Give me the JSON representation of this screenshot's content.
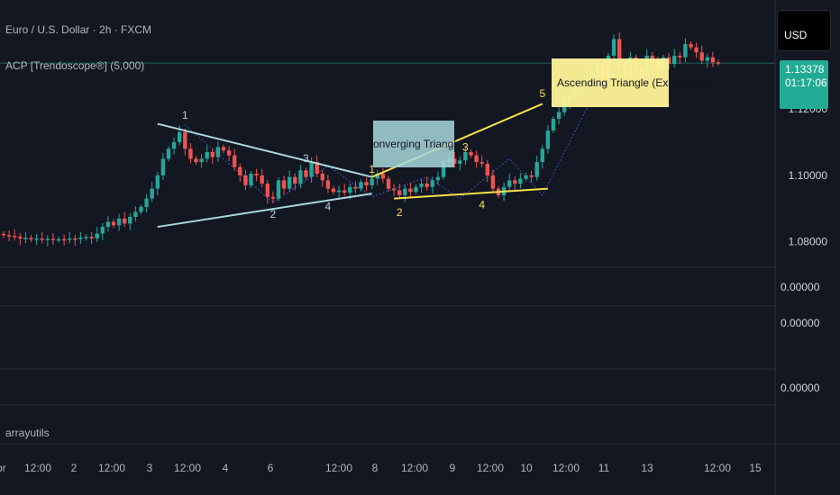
{
  "header": {
    "symbol_title": "Euro / U.S. Dollar · 2h · FXCM",
    "indicator_label": "ACP [Trendoscope®] (5,000)",
    "currency": "USD"
  },
  "price_badge": {
    "price": "1.13378",
    "countdown": "01:17:06"
  },
  "patterns": {
    "converging_label": "Converging Triangle",
    "ascending_label": "Ascending Triangle (Expanding)",
    "pivot_labels": [
      "1",
      "2",
      "3",
      "4",
      "1",
      "2",
      "3",
      "4",
      "5"
    ]
  },
  "panes": {
    "values": [
      "0.00000",
      "0.00000",
      "0.00000"
    ],
    "extra_label": "arrayutils"
  },
  "colors": {
    "background": "#131722",
    "up": "#26a69a",
    "down": "#ef5350",
    "converging": "#a9d8dc",
    "ascending": "#f7e04a",
    "zigzag": "#3f51b5"
  },
  "chart_data": {
    "type": "candlestick",
    "symbol": "EURUSD",
    "timeframe": "2h",
    "y_ticks": [
      "1.12000",
      "1.10000",
      "1.08000"
    ],
    "ylim": [
      1.071,
      1.14
    ],
    "x_ticks": [
      "Apr",
      "12:00",
      "2",
      "12:00",
      "3",
      "12:00",
      "4",
      "6",
      "12:00",
      "8",
      "12:00",
      "9",
      "12:00",
      "10",
      "12:00",
      "11",
      "13",
      "12:00",
      "15"
    ],
    "last_price": 1.13378,
    "closes": [
      1.082,
      1.0818,
      1.0815,
      1.081,
      1.0812,
      1.0808,
      1.081,
      1.0806,
      1.0809,
      1.0805,
      1.0808,
      1.0806,
      1.081,
      1.0808,
      1.0812,
      1.0815,
      1.081,
      1.0825,
      1.0845,
      1.086,
      1.085,
      1.087,
      1.0855,
      1.0875,
      1.089,
      1.0905,
      1.093,
      1.096,
      1.1,
      1.105,
      1.108,
      1.11,
      1.113,
      1.108,
      1.105,
      1.104,
      1.105,
      1.107,
      1.1055,
      1.1085,
      1.1075,
      1.106,
      1.1025,
      1.1,
      1.097,
      1.1005,
      1.1,
      1.0975,
      1.0935,
      1.093,
      1.0985,
      1.096,
      1.0995,
      1.0975,
      1.1015,
      1.0995,
      1.104,
      1.1005,
      1.0985,
      1.096,
      1.095,
      1.0955,
      1.0948,
      1.0965,
      1.096,
      1.098,
      1.097,
      1.099,
      1.1005,
      1.099,
      1.096,
      1.0955,
      1.094,
      1.096,
      1.095,
      1.0965,
      1.0975,
      1.0965,
      1.0985,
      1.0995,
      1.104,
      1.105,
      1.1035,
      1.1045,
      1.107,
      1.106,
      1.104,
      1.1035,
      1.1,
      1.096,
      1.094,
      1.0965,
      1.0985,
      1.0975,
      1.099,
      1.1,
      1.0995,
      1.104,
      1.108,
      1.1135,
      1.117,
      1.119,
      1.122,
      1.124,
      1.1255,
      1.128,
      1.13,
      1.131,
      1.1335,
      1.1295,
      1.136,
      1.141,
      1.133,
      1.13,
      1.1355,
      1.132,
      1.1295,
      1.136,
      1.134,
      1.132,
      1.1355,
      1.1335,
      1.136,
      1.1355,
      1.1395,
      1.1385,
      1.137,
      1.1345,
      1.1355,
      1.134,
      1.13378
    ],
    "patterns": [
      {
        "name": "Converging Triangle",
        "upper": [
          [
            1.1155
          ],
          [
            1.0995
          ]
        ],
        "lower": [
          [
            1.0845
          ],
          [
            1.0945
          ]
        ],
        "pivots": [
          1.1152,
          1.0918,
          1.1028,
          1.0935,
          1.0995
        ]
      },
      {
        "name": "Ascending Triangle (Expanding)",
        "upper": [
          [
            1.0995
          ],
          [
            1.1215
          ]
        ],
        "lower": [
          [
            1.093
          ],
          [
            1.096
          ]
        ],
        "pivots": [
          1.0995,
          1.093,
          1.105,
          1.094,
          1.1232
        ]
      }
    ]
  }
}
